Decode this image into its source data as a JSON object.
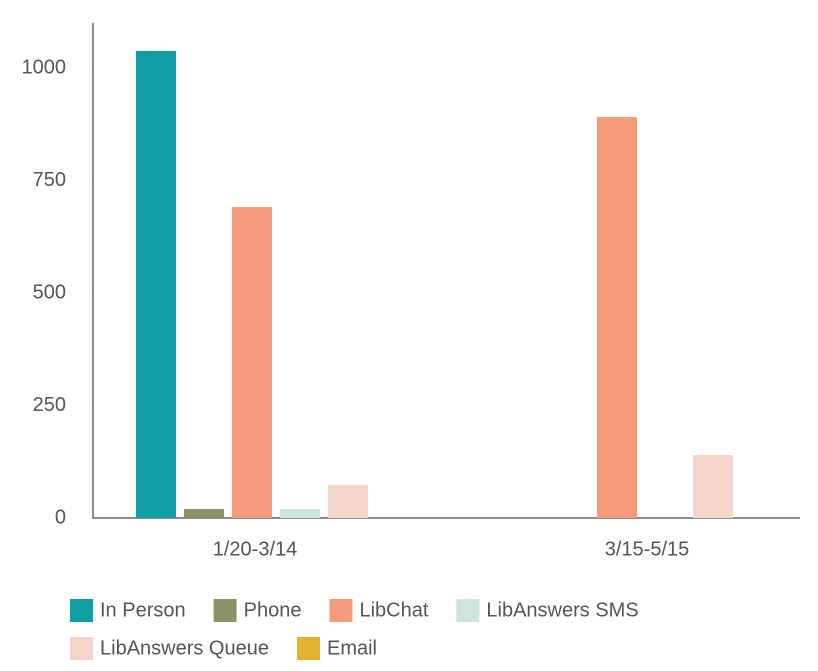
{
  "chart_data": {
    "type": "bar",
    "categories": [
      "1/20-3/14",
      "3/15-5/15"
    ],
    "series": [
      {
        "name": "In Person",
        "color": "#0f9ea4",
        "values": [
          1038,
          0
        ]
      },
      {
        "name": "Phone",
        "color": "#8c9467",
        "values": [
          20,
          0
        ]
      },
      {
        "name": "LibChat",
        "color": "#f59b7c",
        "values": [
          691,
          891
        ]
      },
      {
        "name": "LibAnswers SMS",
        "color": "#cde5dc",
        "values": [
          20,
          0
        ]
      },
      {
        "name": "LibAnswers Queue",
        "color": "#f5d5cb",
        "values": [
          73,
          140
        ]
      },
      {
        "name": "Email",
        "color": "#e3b22c",
        "values": [
          0,
          0
        ]
      }
    ],
    "ylim": [
      0,
      1100
    ],
    "yticks": [
      0,
      250,
      500,
      750,
      1000
    ],
    "grid": false
  }
}
